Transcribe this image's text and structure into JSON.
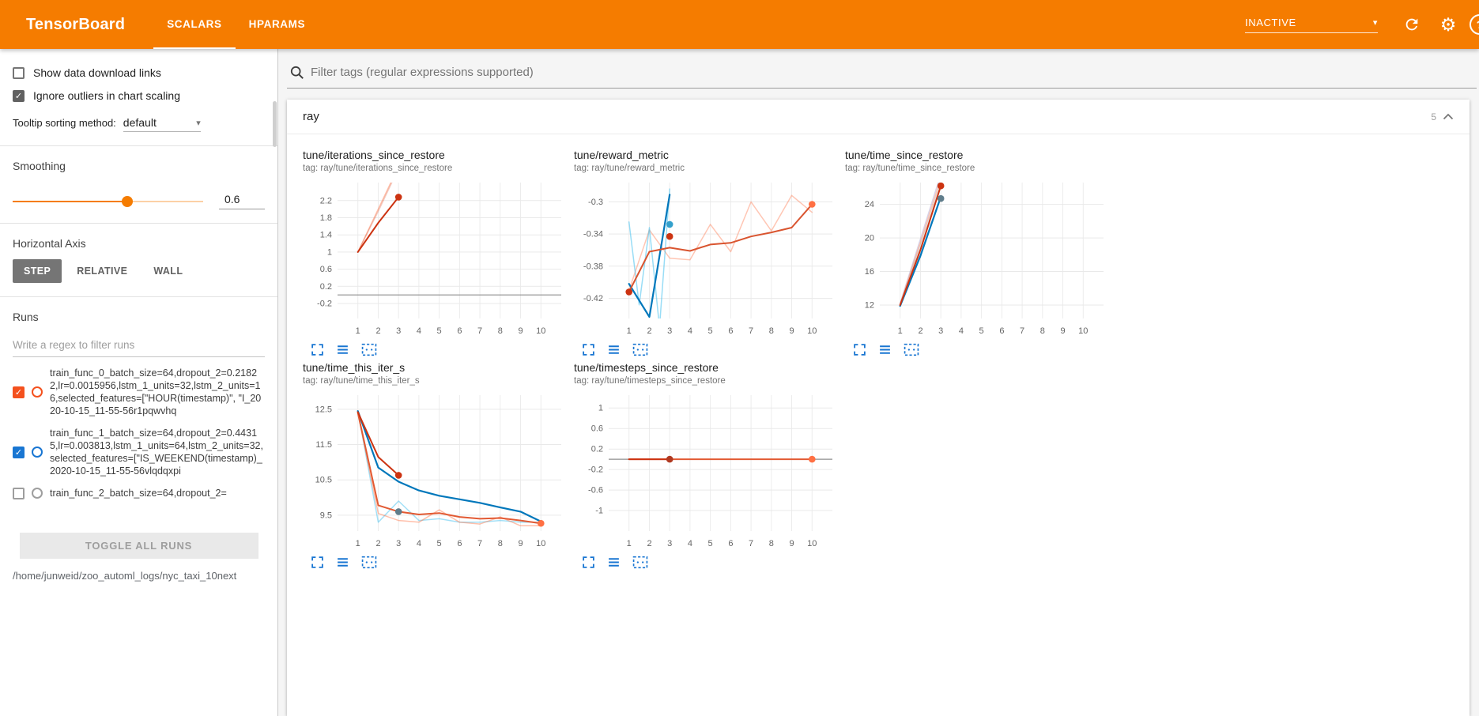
{
  "theme": {
    "accent": "#f57c00",
    "icon_blue": "#1976d2"
  },
  "icons": {
    "caret_down": "▾",
    "check": "✓",
    "gear": "⚙",
    "help": "?"
  },
  "header": {
    "title": "TensorBoard",
    "tabs": [
      {
        "label": "SCALARS",
        "active": true
      },
      {
        "label": "HPARAMS",
        "active": false
      }
    ],
    "status": "INACTIVE"
  },
  "sidebar": {
    "checkboxes": [
      {
        "label": "Show data download links",
        "checked": false
      },
      {
        "label": "Ignore outliers in chart scaling",
        "checked": true
      }
    ],
    "tooltip_sort": {
      "label": "Tooltip sorting method:",
      "value": "default"
    },
    "smoothing": {
      "label": "Smoothing",
      "value": "0.6",
      "fraction": 0.6
    },
    "horizontal_axis": {
      "label": "Horizontal Axis",
      "options": [
        "STEP",
        "RELATIVE",
        "WALL"
      ],
      "selected": "STEP"
    },
    "runs": {
      "label": "Runs",
      "filter_placeholder": "Write a regex to filter runs",
      "items": [
        {
          "label": "train_func_0_batch_size=64,dropout_2=0.21822,lr=0.0015956,lstm_1_units=32,lstm_2_units=16,selected_features=[\"HOUR(timestamp)\", \"I_2020-10-15_11-55-56r1pqwvhq",
          "checked": true,
          "color": "#f4511e"
        },
        {
          "label": "train_func_1_batch_size=64,dropout_2=0.44315,lr=0.003813,lstm_1_units=64,lstm_2_units=32,selected_features=[\"IS_WEEKEND(timestamp)_2020-10-15_11-55-56vlqdqxpi",
          "checked": true,
          "color": "#1976d2"
        },
        {
          "label": "train_func_2_batch_size=64,dropout_2=",
          "checked": false
        }
      ],
      "toggle_all_label": "TOGGLE ALL RUNS",
      "path": "/home/junweid/zoo_automl_logs/nyc_taxi_10next"
    }
  },
  "main": {
    "filter_placeholder": "Filter tags (regular expressions supported)",
    "group": {
      "title": "ray",
      "count": "5"
    }
  },
  "chart_data": [
    {
      "type": "line",
      "title": "tune/iterations_since_restore",
      "tag": "tag: ray/tune/iterations_since_restore",
      "xlim": [
        0,
        11
      ],
      "ylim": [
        -0.55,
        2.62
      ],
      "xticks": [
        1,
        2,
        3,
        4,
        5,
        6,
        7,
        8,
        9,
        10
      ],
      "yticks": [
        -0.2,
        0.2,
        0.6,
        1,
        1.4,
        1.8,
        2.2
      ],
      "zero_line": true,
      "series": [
        {
          "name": "run-0-raw",
          "color": "#ff7043",
          "opacity": 0.45,
          "width": 1.5,
          "points": [
            [
              1,
              1
            ],
            [
              2,
              2
            ],
            [
              3,
              3
            ]
          ]
        },
        {
          "name": "run-2-raw",
          "color": "#cc3311",
          "opacity": 0.25,
          "width": 1.5,
          "points": [
            [
              1,
              1
            ],
            [
              2,
              1.95
            ],
            [
              3,
              2.95
            ]
          ]
        },
        {
          "name": "run-2-smoothed",
          "color": "#cc3311",
          "opacity": 1,
          "width": 2,
          "points": [
            [
              1,
              1
            ],
            [
              2,
              1.68
            ],
            [
              3,
              2.28
            ]
          ]
        }
      ],
      "markers": [
        {
          "x": 3,
          "y": 2.28,
          "color": "#cc3311"
        }
      ]
    },
    {
      "type": "line",
      "title": "tune/reward_metric",
      "tag": "tag: ray/tune/reward_metric",
      "xlim": [
        0,
        11
      ],
      "ylim": [
        -0.445,
        -0.276
      ],
      "xticks": [
        1,
        2,
        3,
        4,
        5,
        6,
        7,
        8,
        9,
        10
      ],
      "yticks": [
        -0.42,
        -0.38,
        -0.34,
        -0.3
      ],
      "zero_line": false,
      "series": [
        {
          "name": "run-0-raw",
          "color": "#ff7043",
          "opacity": 0.4,
          "width": 1.5,
          "points": [
            [
              1,
              -0.41
            ],
            [
              2,
              -0.335
            ],
            [
              3,
              -0.37
            ],
            [
              4,
              -0.372
            ],
            [
              5,
              -0.328
            ],
            [
              6,
              -0.362
            ],
            [
              7,
              -0.3
            ],
            [
              8,
              -0.336
            ],
            [
              9,
              -0.292
            ],
            [
              10,
              -0.313
            ]
          ]
        },
        {
          "name": "run-1-raw",
          "color": "#33bbee",
          "opacity": 0.5,
          "width": 1.5,
          "points": [
            [
              1,
              -0.325
            ],
            [
              1.5,
              -0.428
            ],
            [
              2,
              -0.332
            ],
            [
              2.5,
              -0.456
            ],
            [
              3,
              -0.284
            ]
          ]
        },
        {
          "name": "run-1-smoothed",
          "color": "#0077bb",
          "opacity": 1,
          "width": 2.2,
          "points": [
            [
              1,
              -0.402
            ],
            [
              2,
              -0.443
            ],
            [
              3,
              -0.291
            ]
          ]
        },
        {
          "name": "run-0-smoothed",
          "color": "#d9542f",
          "opacity": 1,
          "width": 2,
          "points": [
            [
              1,
              -0.412
            ],
            [
              2,
              -0.362
            ],
            [
              3,
              -0.357
            ],
            [
              4,
              -0.361
            ],
            [
              5,
              -0.353
            ],
            [
              6,
              -0.351
            ],
            [
              7,
              -0.343
            ],
            [
              8,
              -0.338
            ],
            [
              9,
              -0.332
            ],
            [
              10,
              -0.303
            ]
          ]
        }
      ],
      "markers": [
        {
          "x": 1,
          "y": -0.412,
          "color": "#cc3311"
        },
        {
          "x": 3,
          "y": -0.328,
          "color": "#33a0cc"
        },
        {
          "x": 3,
          "y": -0.343,
          "color": "#cc3311"
        },
        {
          "x": 10,
          "y": -0.303,
          "color": "#ff7043"
        }
      ]
    },
    {
      "type": "line",
      "title": "tune/time_since_restore",
      "tag": "tag: ray/tune/time_since_restore",
      "xlim": [
        0,
        11
      ],
      "ylim": [
        10.4,
        26.6
      ],
      "xticks": [
        1,
        2,
        3,
        4,
        5,
        6,
        7,
        8,
        9,
        10
      ],
      "yticks": [
        12,
        16,
        20,
        24
      ],
      "zero_line": false,
      "series": [
        {
          "name": "ghost-1",
          "color": "#b0a8d0",
          "opacity": 0.5,
          "width": 1.5,
          "points": [
            [
              1,
              12.2
            ],
            [
              2,
              19.9
            ],
            [
              3,
              27.6
            ]
          ]
        },
        {
          "name": "ghost-2",
          "color": "#c0c0c0",
          "opacity": 0.5,
          "width": 1.5,
          "points": [
            [
              1,
              12
            ],
            [
              2,
              19.2
            ],
            [
              3,
              26.6
            ]
          ]
        },
        {
          "name": "run-0-raw",
          "color": "#ff7043",
          "opacity": 0.4,
          "width": 1.5,
          "points": [
            [
              1,
              12.1
            ],
            [
              2,
              19.5
            ],
            [
              3,
              27.1
            ]
          ]
        },
        {
          "name": "run-1-smoothed",
          "color": "#0077bb",
          "opacity": 1,
          "width": 2.2,
          "points": [
            [
              1,
              11.9
            ],
            [
              2,
              17.9
            ],
            [
              3,
              24.9
            ]
          ]
        },
        {
          "name": "run-2-smoothed",
          "color": "#cc3311",
          "opacity": 1,
          "width": 2,
          "points": [
            [
              1,
              12
            ],
            [
              2,
              18.6
            ],
            [
              3,
              26.2
            ]
          ]
        }
      ],
      "markers": [
        {
          "x": 3,
          "y": 26.2,
          "color": "#cc3311"
        },
        {
          "x": 3,
          "y": 24.7,
          "color": "#607d8b"
        }
      ]
    },
    {
      "type": "line",
      "title": "tune/time_this_iter_s",
      "tag": "tag: ray/tune/time_this_iter_s",
      "xlim": [
        0,
        11
      ],
      "ylim": [
        9.05,
        12.9
      ],
      "xticks": [
        1,
        2,
        3,
        4,
        5,
        6,
        7,
        8,
        9,
        10
      ],
      "yticks": [
        9.5,
        10.5,
        11.5,
        12.5
      ],
      "zero_line": false,
      "series": [
        {
          "name": "run-1-raw",
          "color": "#33bbee",
          "opacity": 0.45,
          "width": 1.5,
          "points": [
            [
              1,
              12.45
            ],
            [
              2,
              9.3
            ],
            [
              3,
              9.9
            ],
            [
              4,
              9.35
            ],
            [
              5,
              9.4
            ],
            [
              6,
              9.3
            ],
            [
              7,
              9.3
            ],
            [
              8,
              9.35
            ],
            [
              9,
              9.3
            ],
            [
              10,
              9.3
            ]
          ]
        },
        {
          "name": "run-0-raw",
          "color": "#ff7043",
          "opacity": 0.45,
          "width": 1.5,
          "points": [
            [
              1,
              12.4
            ],
            [
              2,
              9.55
            ],
            [
              3,
              9.35
            ],
            [
              4,
              9.3
            ],
            [
              5,
              9.65
            ],
            [
              6,
              9.3
            ],
            [
              7,
              9.25
            ],
            [
              8,
              9.45
            ],
            [
              9,
              9.2
            ],
            [
              10,
              9.2
            ]
          ]
        },
        {
          "name": "run-1-smoothed",
          "color": "#0077bb",
          "opacity": 1,
          "width": 2.2,
          "points": [
            [
              1,
              12.45
            ],
            [
              2,
              10.85
            ],
            [
              3,
              10.45
            ],
            [
              4,
              10.2
            ],
            [
              5,
              10.05
            ],
            [
              6,
              9.95
            ],
            [
              7,
              9.85
            ],
            [
              8,
              9.72
            ],
            [
              9,
              9.6
            ],
            [
              10,
              9.32
            ]
          ]
        },
        {
          "name": "run-0-smoothed",
          "color": "#e25a33",
          "opacity": 1,
          "width": 2,
          "points": [
            [
              1,
              12.4
            ],
            [
              2,
              9.78
            ],
            [
              3,
              9.6
            ],
            [
              4,
              9.52
            ],
            [
              5,
              9.56
            ],
            [
              6,
              9.45
            ],
            [
              7,
              9.4
            ],
            [
              8,
              9.42
            ],
            [
              9,
              9.35
            ],
            [
              10,
              9.27
            ]
          ]
        },
        {
          "name": "run-2-smoothed",
          "color": "#cc3311",
          "opacity": 1,
          "width": 2,
          "points": [
            [
              1,
              12.42
            ],
            [
              2,
              11.15
            ],
            [
              3,
              10.63
            ]
          ]
        }
      ],
      "markers": [
        {
          "x": 3,
          "y": 10.63,
          "color": "#cc3311"
        },
        {
          "x": 3,
          "y": 9.6,
          "color": "#607d8b"
        },
        {
          "x": 10,
          "y": 9.27,
          "color": "#ff7043"
        }
      ]
    },
    {
      "type": "line",
      "title": "tune/timesteps_since_restore",
      "tag": "tag: ray/tune/timesteps_since_restore",
      "xlim": [
        0,
        11
      ],
      "ylim": [
        -1.4,
        1.25
      ],
      "xticks": [
        1,
        2,
        3,
        4,
        5,
        6,
        7,
        8,
        9,
        10
      ],
      "yticks": [
        -1,
        -0.6,
        -0.2,
        0.2,
        0.6,
        1
      ],
      "zero_line": true,
      "series": [
        {
          "name": "run-0-smoothed",
          "color": "#e25a33",
          "opacity": 1,
          "width": 2,
          "points": [
            [
              1,
              0
            ],
            [
              10,
              0
            ]
          ]
        },
        {
          "name": "run-2-smoothed",
          "color": "#cc3311",
          "opacity": 1,
          "width": 2,
          "points": [
            [
              1,
              0
            ],
            [
              3,
              0
            ]
          ]
        }
      ],
      "markers": [
        {
          "x": 3,
          "y": 0,
          "color": "#b03a22"
        },
        {
          "x": 10,
          "y": 0,
          "color": "#ff7043"
        }
      ]
    }
  ]
}
